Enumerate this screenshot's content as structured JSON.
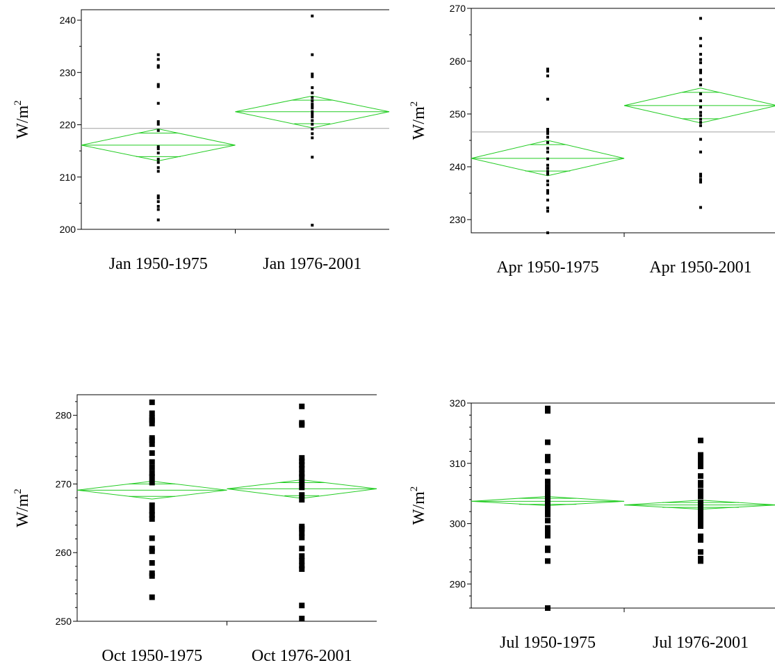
{
  "chart_data": [
    {
      "type": "scatter",
      "xlabel": "",
      "ylabel": "W/m",
      "ylabel_sup": "2",
      "ylim": [
        200,
        242
      ],
      "yticks": [
        200,
        210,
        220,
        230,
        240
      ],
      "categories": [
        "Jan 1950-1975",
        "Jan 1976-2001"
      ],
      "grand_mean": 219.3,
      "groups": [
        {
          "category": "Jan 1950-1975",
          "mean": 216.1,
          "ci": [
            213.1,
            219.2
          ],
          "inner": [
            213.9,
            218.4
          ],
          "points": [
            201.8,
            203.8,
            204.4,
            205.3,
            206.0,
            206.4,
            211.1,
            211.8,
            212.8,
            213.4,
            214.6,
            215.4,
            215.8,
            218.9,
            220.1,
            220.6,
            224.1,
            227.3,
            227.7,
            231.0,
            231.3,
            232.5,
            233.4
          ]
        },
        {
          "category": "Jan 1976-2001",
          "mean": 222.5,
          "ci": [
            219.4,
            225.5
          ],
          "inner": [
            220.2,
            224.7
          ],
          "points": [
            200.8,
            213.8,
            217.5,
            218.3,
            219.2,
            220.1,
            220.8,
            221.5,
            222.0,
            222.5,
            223.2,
            223.6,
            224.0,
            224.6,
            225.2,
            226.1,
            227.1,
            229.2,
            229.7,
            233.4,
            240.8
          ]
        }
      ]
    },
    {
      "type": "scatter",
      "xlabel": "",
      "ylabel": "W/m",
      "ylabel_sup": "2",
      "ylim": [
        227.5,
        270
      ],
      "yticks": [
        230,
        240,
        250,
        260,
        270
      ],
      "categories": [
        "Apr 1950-1975",
        "Apr 1950-2001"
      ],
      "grand_mean": 246.6,
      "groups": [
        {
          "category": "Apr 1950-1975",
          "mean": 241.6,
          "ci": [
            238.3,
            245.0
          ],
          "inner": [
            239.2,
            244.2
          ],
          "points": [
            227.5,
            231.6,
            232.2,
            233.7,
            235.0,
            235.5,
            236.6,
            237.3,
            238.6,
            239.1,
            239.7,
            240.3,
            241.5,
            242.8,
            243.5,
            244.6,
            245.6,
            246.3,
            246.8,
            247.1,
            252.8,
            257.2,
            258.1,
            258.5
          ]
        },
        {
          "category": "Apr 1950-2001",
          "mean": 251.6,
          "ci": [
            248.3,
            254.9
          ],
          "inner": [
            249.1,
            254.1
          ],
          "points": [
            232.3,
            237.1,
            237.6,
            238.2,
            238.6,
            242.8,
            245.2,
            247.8,
            248.4,
            249.0,
            249.7,
            250.3,
            251.3,
            252.5,
            253.8,
            255.5,
            256.5,
            257.8,
            258.3,
            259.7,
            260.3,
            261.3,
            262.9,
            264.3,
            268.1
          ]
        }
      ]
    },
    {
      "type": "scatter",
      "xlabel": "",
      "ylabel": "W/m",
      "ylabel_sup": "2",
      "ylim": [
        250,
        283
      ],
      "yticks": [
        250,
        260,
        270,
        280
      ],
      "categories": [
        "Oct 1950-1975",
        "Oct 1976-2001"
      ],
      "grand_mean": null,
      "groups": [
        {
          "category": "Oct 1950-1975",
          "mean": 269.1,
          "ci": [
            267.8,
            270.4
          ],
          "inner": [
            268.2,
            270.0
          ],
          "points": [
            253.5,
            256.6,
            257.0,
            258.5,
            260.2,
            260.6,
            262.1,
            264.9,
            265.5,
            266.1,
            266.9,
            270.2,
            271.0,
            271.6,
            272.4,
            273.2,
            274.5,
            275.8,
            276.4,
            276.7,
            278.8,
            279.3,
            279.6,
            280.3,
            281.9
          ]
        },
        {
          "category": "Oct 1976-2001",
          "mean": 269.3,
          "ci": [
            267.9,
            270.6
          ],
          "inner": [
            268.3,
            270.2
          ],
          "points": [
            250.4,
            252.3,
            257.6,
            258.1,
            258.8,
            259.5,
            260.6,
            262.2,
            262.9,
            263.5,
            263.8,
            267.7,
            268.4,
            269.5,
            270.2,
            271.0,
            271.5,
            272.2,
            272.8,
            273.3,
            273.8,
            278.6,
            278.9,
            281.3
          ]
        }
      ]
    },
    {
      "type": "scatter",
      "xlabel": "",
      "ylabel": "W/m",
      "ylabel_sup": "2",
      "ylim": [
        286,
        320
      ],
      "yticks": [
        290,
        300,
        310,
        320
      ],
      "categories": [
        "Jul 1950-1975",
        "Jul 1976-2001"
      ],
      "grand_mean": null,
      "groups": [
        {
          "category": "Jul 1950-1975",
          "mean": 303.7,
          "ci": [
            303.0,
            304.5
          ],
          "inner": [
            303.2,
            304.2
          ],
          "points": [
            286.0,
            293.8,
            295.6,
            295.9,
            298.0,
            298.9,
            299.3,
            300.5,
            301.5,
            302.2,
            302.8,
            303.4,
            303.9,
            304.4,
            304.9,
            305.5,
            306.1,
            307.0,
            308.6,
            310.5,
            310.9,
            311.1,
            313.5,
            318.7,
            319.1
          ]
        },
        {
          "category": "Jul 1976-2001",
          "mean": 303.1,
          "ci": [
            302.4,
            303.9
          ],
          "inner": [
            302.7,
            303.5
          ],
          "points": [
            293.8,
            294.2,
            295.3,
            297.3,
            297.9,
            299.6,
            300.2,
            300.7,
            301.3,
            302.1,
            302.7,
            303.5,
            304.5,
            305.0,
            305.4,
            306.4,
            306.8,
            307.9,
            309.5,
            310.1,
            310.6,
            311.0,
            311.4,
            313.8
          ]
        }
      ]
    }
  ]
}
